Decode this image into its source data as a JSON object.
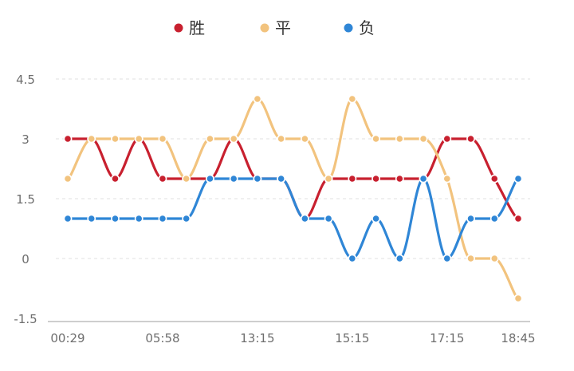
{
  "chart_data": {
    "type": "line",
    "title": "",
    "xlabel": "",
    "ylabel": "",
    "ylim": [
      -1.5,
      4.5
    ],
    "y_ticks": [
      {
        "value": 4.5,
        "label": "4.5"
      },
      {
        "value": 3,
        "label": "3"
      },
      {
        "value": 1.5,
        "label": "1.5"
      },
      {
        "value": 0,
        "label": "0"
      },
      {
        "value": -1.5,
        "label": "-1.5"
      }
    ],
    "x_tick_labels": [
      {
        "index": 0,
        "label": "00:29"
      },
      {
        "index": 4,
        "label": "05:58"
      },
      {
        "index": 8,
        "label": "13:15"
      },
      {
        "index": 12,
        "label": "15:15"
      },
      {
        "index": 16,
        "label": "17:15"
      },
      {
        "index": 19,
        "label": "18:45"
      }
    ],
    "grid": true,
    "legend_position": "top-center",
    "series": [
      {
        "name": "胜",
        "color": "#c8202f",
        "values": [
          3,
          3,
          2,
          3,
          2,
          2,
          2,
          3,
          2,
          2,
          1,
          2,
          2,
          2,
          2,
          2,
          3,
          3,
          2,
          1
        ]
      },
      {
        "name": "平",
        "color": "#f2c37e",
        "values": [
          2,
          3,
          3,
          3,
          3,
          2,
          3,
          3,
          4,
          3,
          3,
          2,
          4,
          3,
          3,
          3,
          2,
          0,
          0,
          -1
        ]
      },
      {
        "name": "负",
        "color": "#2f86d6",
        "values": [
          1,
          1,
          1,
          1,
          1,
          1,
          2,
          2,
          2,
          2,
          1,
          1,
          0,
          1,
          0,
          2,
          0,
          1,
          1,
          2
        ]
      }
    ],
    "colors": {
      "axis": "#bdbdbd",
      "grid": "#e6e6e6",
      "tick_text": "#6e6e6e",
      "legend_text": "#333333"
    }
  }
}
